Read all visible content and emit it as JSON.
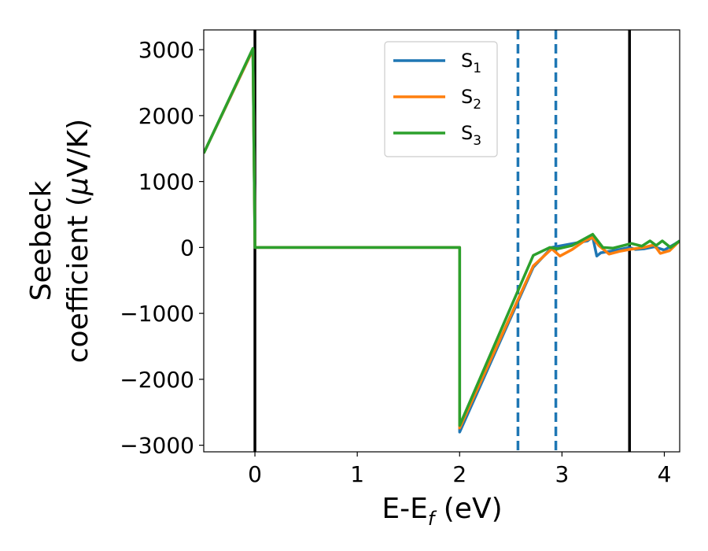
{
  "chart_data": {
    "type": "line",
    "xlabel": {
      "base": "E-E",
      "sub": "f",
      "suffix": " (eV)"
    },
    "ylabel": {
      "line1": "Seebeck",
      "line2_a": "coefficient  (",
      "line2_mu": "μ",
      "line2_b": "V/K)"
    },
    "xlim": [
      -0.5,
      4.15
    ],
    "ylim": [
      -3100,
      3300
    ],
    "xticks": [
      0,
      1,
      2,
      3,
      4
    ],
    "xtick_labels": [
      "0",
      "1",
      "2",
      "3",
      "4"
    ],
    "yticks": [
      -3000,
      -2000,
      -1000,
      0,
      1000,
      2000,
      3000
    ],
    "ytick_labels": [
      "−3000",
      "−2000",
      "−1000",
      "0",
      "1000",
      "2000",
      "3000"
    ],
    "grid": false,
    "legend_position": "top-center",
    "vlines": [
      {
        "x": 0.0,
        "style": "solid",
        "color": "#000000"
      },
      {
        "x": 2.57,
        "style": "dashed",
        "color": "#1f77b4"
      },
      {
        "x": 2.94,
        "style": "dashed",
        "color": "#1f77b4"
      },
      {
        "x": 3.66,
        "style": "solid",
        "color": "#000000"
      }
    ],
    "series": [
      {
        "name_base": "S",
        "name_sub": "1",
        "color": "#1f77b4",
        "x": [
          -0.5,
          -0.02,
          0.0,
          2.0,
          2.0,
          2.72,
          2.9,
          3.25,
          3.3,
          3.34,
          3.38,
          3.5,
          3.66,
          3.72,
          3.8,
          3.9,
          4.0,
          4.1,
          4.15
        ],
        "y": [
          1430,
          3000,
          0,
          0,
          -2800,
          -300,
          0,
          100,
          160,
          -130,
          -80,
          -50,
          0,
          -30,
          -20,
          10,
          -40,
          50,
          100
        ]
      },
      {
        "name_base": "S",
        "name_sub": "2",
        "color": "#ff7f0e",
        "x": [
          -0.5,
          -0.02,
          0.0,
          2.0,
          2.0,
          2.72,
          2.9,
          2.98,
          3.1,
          3.22,
          3.3,
          3.36,
          3.46,
          3.56,
          3.66,
          3.8,
          3.9,
          3.96,
          4.05,
          4.15
        ],
        "y": [
          1430,
          3000,
          0,
          0,
          -2740,
          -280,
          -20,
          -130,
          -30,
          100,
          150,
          30,
          -100,
          -60,
          -30,
          0,
          40,
          -90,
          -50,
          100
        ]
      },
      {
        "name_base": "S",
        "name_sub": "3",
        "color": "#2ca02c",
        "x": [
          -0.5,
          -0.02,
          0.0,
          2.0,
          2.0,
          2.72,
          2.88,
          2.96,
          3.1,
          3.3,
          3.4,
          3.5,
          3.6,
          3.68,
          3.78,
          3.86,
          3.92,
          3.98,
          4.06,
          4.15
        ],
        "y": [
          1430,
          3020,
          0,
          0,
          -2700,
          -120,
          0,
          -20,
          30,
          200,
          0,
          -10,
          30,
          60,
          20,
          100,
          30,
          100,
          0,
          100
        ]
      }
    ]
  }
}
